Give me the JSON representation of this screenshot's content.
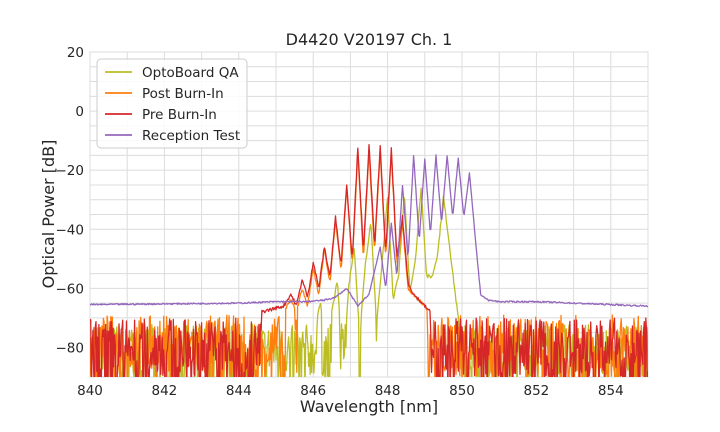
{
  "chart_data": {
    "type": "line",
    "title": "D4420 V20197 Ch. 1",
    "xlabel": "Wavelength [nm]",
    "ylabel": "Optical Power [dB]",
    "xlim": [
      840,
      855
    ],
    "ylim": [
      -90,
      20
    ],
    "xticks": [
      840,
      842,
      844,
      846,
      848,
      850,
      852,
      854
    ],
    "yticks": [
      20,
      0,
      -20,
      -40,
      -60,
      -80
    ],
    "ytick_labels": [
      "20",
      "0",
      "−20",
      "−40",
      "−60",
      "−80"
    ],
    "grid": true,
    "legend_position": "top-left",
    "series": [
      {
        "name": "OptoBoard QA",
        "color": "#bcbd22",
        "noise_floor_range": [
          -90,
          -72
        ],
        "x": [
          840.0,
          845.9,
          846.2,
          846.35,
          846.5,
          846.65,
          846.8,
          846.95,
          847.1,
          847.25,
          847.4,
          847.55,
          847.7,
          847.85,
          848.0,
          848.15,
          848.3,
          848.45,
          848.6,
          848.75,
          848.9,
          849.05,
          849.2,
          849.35,
          849.5,
          849.65,
          849.8,
          849.95,
          850.1,
          850.4,
          855.0
        ],
        "y": [
          -82,
          -80,
          -65,
          -85,
          -68,
          -57,
          -88,
          -60,
          -46,
          -76,
          -52,
          -37,
          -72,
          -52,
          -29,
          -64,
          -55,
          -28,
          -61,
          -50,
          -26,
          -56,
          -56,
          -48,
          -29,
          -44,
          -60,
          -75,
          -84,
          -88,
          -88
        ]
      },
      {
        "name": "Post Burn-In",
        "color": "#ff7f0e",
        "noise_floor_range": [
          -90,
          -69
        ],
        "x": [
          840.0,
          844.0,
          845.2,
          845.4,
          845.55,
          845.7,
          845.85,
          846.0,
          846.15,
          846.3,
          846.45,
          846.6,
          846.75,
          846.9,
          847.05,
          847.2,
          847.35,
          847.5,
          847.65,
          847.8,
          847.95,
          848.1,
          848.25,
          848.4,
          848.55,
          848.7,
          848.85,
          849.0,
          849.15,
          849.3,
          850.0,
          855.0
        ],
        "y": [
          -72,
          -71,
          -68,
          -64,
          -68,
          -60,
          -66,
          -53,
          -62,
          -47,
          -58,
          -37,
          -54,
          -26,
          -52,
          -14,
          -50,
          -13,
          -48,
          -13,
          -50,
          -14,
          -52,
          -38,
          -60,
          -62,
          -64,
          -66,
          -68,
          -70,
          -72,
          -74
        ]
      },
      {
        "name": "Pre Burn-In",
        "color": "#d62728",
        "noise_floor_range": [
          -90,
          -70
        ],
        "x": [
          840.0,
          844.0,
          845.2,
          845.4,
          845.55,
          845.7,
          845.85,
          846.0,
          846.15,
          846.3,
          846.45,
          846.6,
          846.75,
          846.9,
          847.05,
          847.2,
          847.35,
          847.5,
          847.65,
          847.8,
          847.95,
          848.1,
          848.25,
          848.4,
          848.55,
          848.7,
          848.85,
          849.0,
          849.15,
          849.3,
          850.0,
          855.0
        ],
        "y": [
          -71,
          -70,
          -66,
          -62,
          -66,
          -57,
          -63,
          -51,
          -60,
          -46,
          -56,
          -36,
          -52,
          -25,
          -50,
          -12,
          -48,
          -11,
          -46,
          -12,
          -48,
          -13,
          -50,
          -36,
          -58,
          -62,
          -64,
          -66,
          -68,
          -70,
          -72,
          -74
        ]
      },
      {
        "name": "Reception Test",
        "color": "#9467bd",
        "x": [
          840.0,
          844.0,
          845.0,
          845.8,
          846.3,
          846.6,
          846.9,
          847.2,
          847.5,
          847.8,
          847.95,
          848.1,
          848.25,
          848.4,
          848.55,
          848.7,
          848.85,
          849.0,
          849.15,
          849.3,
          849.45,
          849.6,
          849.75,
          849.9,
          850.05,
          850.2,
          850.35,
          850.5,
          850.7,
          851.0,
          852.0,
          855.0
        ],
        "y": [
          -65.5,
          -65,
          -64.5,
          -64.5,
          -64,
          -63,
          -60,
          -66,
          -62,
          -46,
          -60,
          -38,
          -56,
          -25,
          -50,
          -15,
          -44,
          -16,
          -42,
          -15,
          -38,
          -15,
          -36,
          -16,
          -36,
          -21,
          -42,
          -62,
          -64,
          -64.5,
          -64.5,
          -66
        ]
      }
    ]
  }
}
